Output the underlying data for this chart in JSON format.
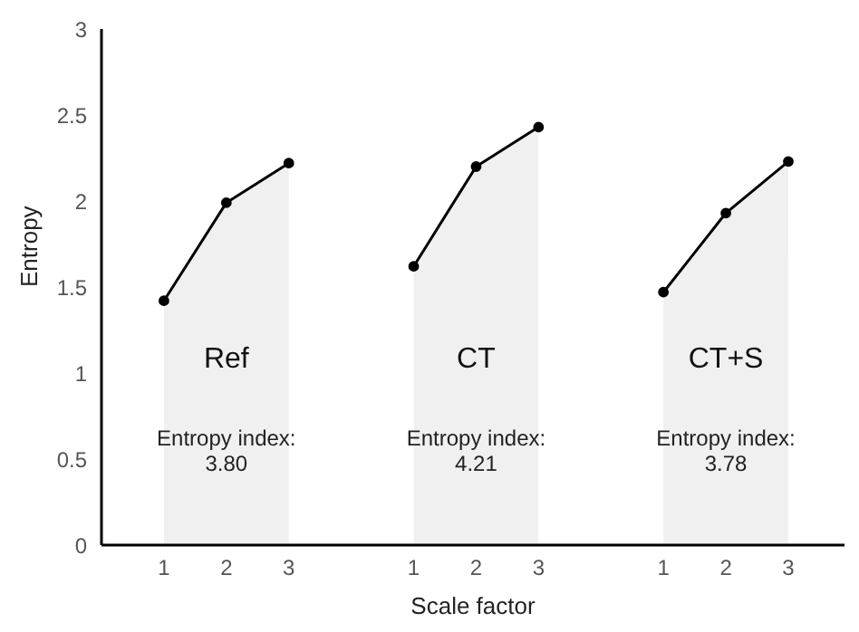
{
  "chart_data": {
    "type": "area",
    "xlabel": "Scale factor",
    "ylabel": "Entropy",
    "categories": [
      "1",
      "2",
      "3",
      null,
      "1",
      "2",
      "3",
      null,
      "1",
      "2",
      "3"
    ],
    "series": [
      {
        "name": "Ref",
        "color": "#000000",
        "values": [
          1.42,
          1.99,
          2.22,
          null,
          null,
          null,
          null,
          null,
          null,
          null,
          null
        ]
      },
      {
        "name": "CT",
        "color": "#000000",
        "values": [
          null,
          null,
          null,
          null,
          1.62,
          2.2,
          2.43,
          null,
          null,
          null,
          null
        ]
      },
      {
        "name": "CT+S",
        "color": "#000000",
        "values": [
          null,
          null,
          null,
          null,
          null,
          null,
          null,
          null,
          1.47,
          1.93,
          2.23
        ]
      }
    ],
    "ylim": [
      0,
      3
    ],
    "yticks": [
      0,
      0.5,
      1,
      1.5,
      2,
      2.5,
      3
    ],
    "marker": "circle",
    "annotations": [
      "Entropy index:\n3.80",
      "Entropy index:\n4.21",
      "Entropy index:\n3.78"
    ]
  }
}
